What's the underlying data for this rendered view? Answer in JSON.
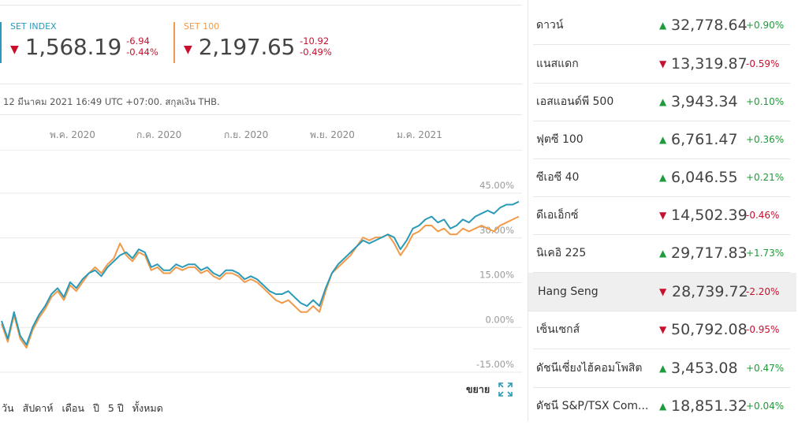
{
  "indices": [
    {
      "name": "SET INDEX",
      "value": "1,568.19",
      "change": "-6.94",
      "change_pct": "-0.44%",
      "color": "#2a9ab8"
    },
    {
      "name": "SET 100",
      "value": "2,197.65",
      "change": "-10.92",
      "change_pct": "-0.49%",
      "color": "#f29a4a"
    }
  ],
  "timestamp": "12 มีนาคม 2021 16:49 UTC +07:00. สกุลเงิน THB.",
  "months": [
    "พ.ค. 2020",
    "ก.ค. 2020",
    "ก.ย. 2020",
    "พ.ย. 2020",
    "ม.ค. 2021"
  ],
  "chart_data": {
    "type": "line",
    "y_ticks": [
      "45.00%",
      "30.00%",
      "15.00%",
      "0.00%",
      "-15.00%"
    ],
    "ylim": [
      -15,
      45
    ],
    "x_labels": [
      "พ.ค. 2020",
      "ก.ค. 2020",
      "ก.ย. 2020",
      "พ.ย. 2020",
      "ม.ค. 2021"
    ],
    "series": [
      {
        "name": "SET INDEX",
        "color": "#2a9ab8",
        "values": [
          -1,
          -7,
          2,
          -6,
          -9,
          -3,
          1,
          4,
          8,
          10,
          7,
          12,
          10,
          13,
          15,
          16,
          14,
          17,
          19,
          21,
          22,
          20,
          23,
          22,
          17,
          18,
          16,
          16,
          18,
          17,
          18,
          18,
          16,
          17,
          15,
          14,
          16,
          16,
          15,
          13,
          14,
          13,
          11,
          9,
          8,
          8,
          9,
          7,
          5,
          4,
          6,
          4,
          10,
          15,
          18,
          20,
          22,
          24,
          26,
          25,
          26,
          27,
          28,
          27,
          23,
          26,
          30,
          31,
          33,
          34,
          32,
          33,
          30,
          31,
          33,
          32,
          34,
          35,
          36,
          35,
          37,
          38,
          38,
          39
        ]
      },
      {
        "name": "SET 100",
        "color": "#f29a4a",
        "values": [
          -2,
          -8,
          1,
          -7,
          -10,
          -4,
          0,
          3,
          7,
          9,
          6,
          11,
          9,
          12,
          15,
          17,
          15,
          18,
          20,
          25,
          21,
          19,
          22,
          21,
          16,
          17,
          15,
          15,
          17,
          16,
          17,
          17,
          15,
          16,
          14,
          13,
          15,
          15,
          14,
          12,
          13,
          12,
          10,
          8,
          6,
          5,
          6,
          4,
          2,
          2,
          4,
          2,
          9,
          15,
          17,
          19,
          21,
          24,
          27,
          26,
          27,
          27,
          28,
          25,
          21,
          24,
          28,
          29,
          31,
          31,
          29,
          30,
          28,
          28,
          30,
          29,
          30,
          31,
          30,
          29,
          31,
          32,
          33,
          34
        ]
      }
    ]
  },
  "expand_label": "ขยาย",
  "ranges": [
    "วัน",
    "สัปดาห์",
    "เดือน",
    "ปี",
    "5 ปี",
    "ทั้งหมด"
  ],
  "markets": [
    {
      "name": "ดาวน์",
      "direction": "up",
      "value": "32,778.64",
      "pct": "+0.90%"
    },
    {
      "name": "แนสแดก",
      "direction": "down",
      "value": "13,319.87",
      "pct": "-0.59%"
    },
    {
      "name": "เอสแอนด์พี 500",
      "direction": "up",
      "value": "3,943.34",
      "pct": "+0.10%"
    },
    {
      "name": "ฟุตซี 100",
      "direction": "up",
      "value": "6,761.47",
      "pct": "+0.36%"
    },
    {
      "name": "ซีเอซี 40",
      "direction": "up",
      "value": "6,046.55",
      "pct": "+0.21%"
    },
    {
      "name": "ดีเอเอ็กซ์",
      "direction": "down",
      "value": "14,502.39",
      "pct": "-0.46%"
    },
    {
      "name": "นิเคอิ 225",
      "direction": "up",
      "value": "29,717.83",
      "pct": "+1.73%"
    },
    {
      "name": "Hang Seng",
      "direction": "down",
      "value": "28,739.72",
      "pct": "-2.20%"
    },
    {
      "name": "เซ็นเซกส์",
      "direction": "down",
      "value": "50,792.08",
      "pct": "-0.95%"
    },
    {
      "name": "ดัชนีเซี่ยงไฮ้คอมโพสิต",
      "direction": "up",
      "value": "3,453.08",
      "pct": "+0.47%"
    },
    {
      "name": "ดัชนี S&P/TSX Com...",
      "direction": "up",
      "value": "18,851.32",
      "pct": "+0.04%"
    }
  ],
  "highlighted_market": "Hang Seng"
}
